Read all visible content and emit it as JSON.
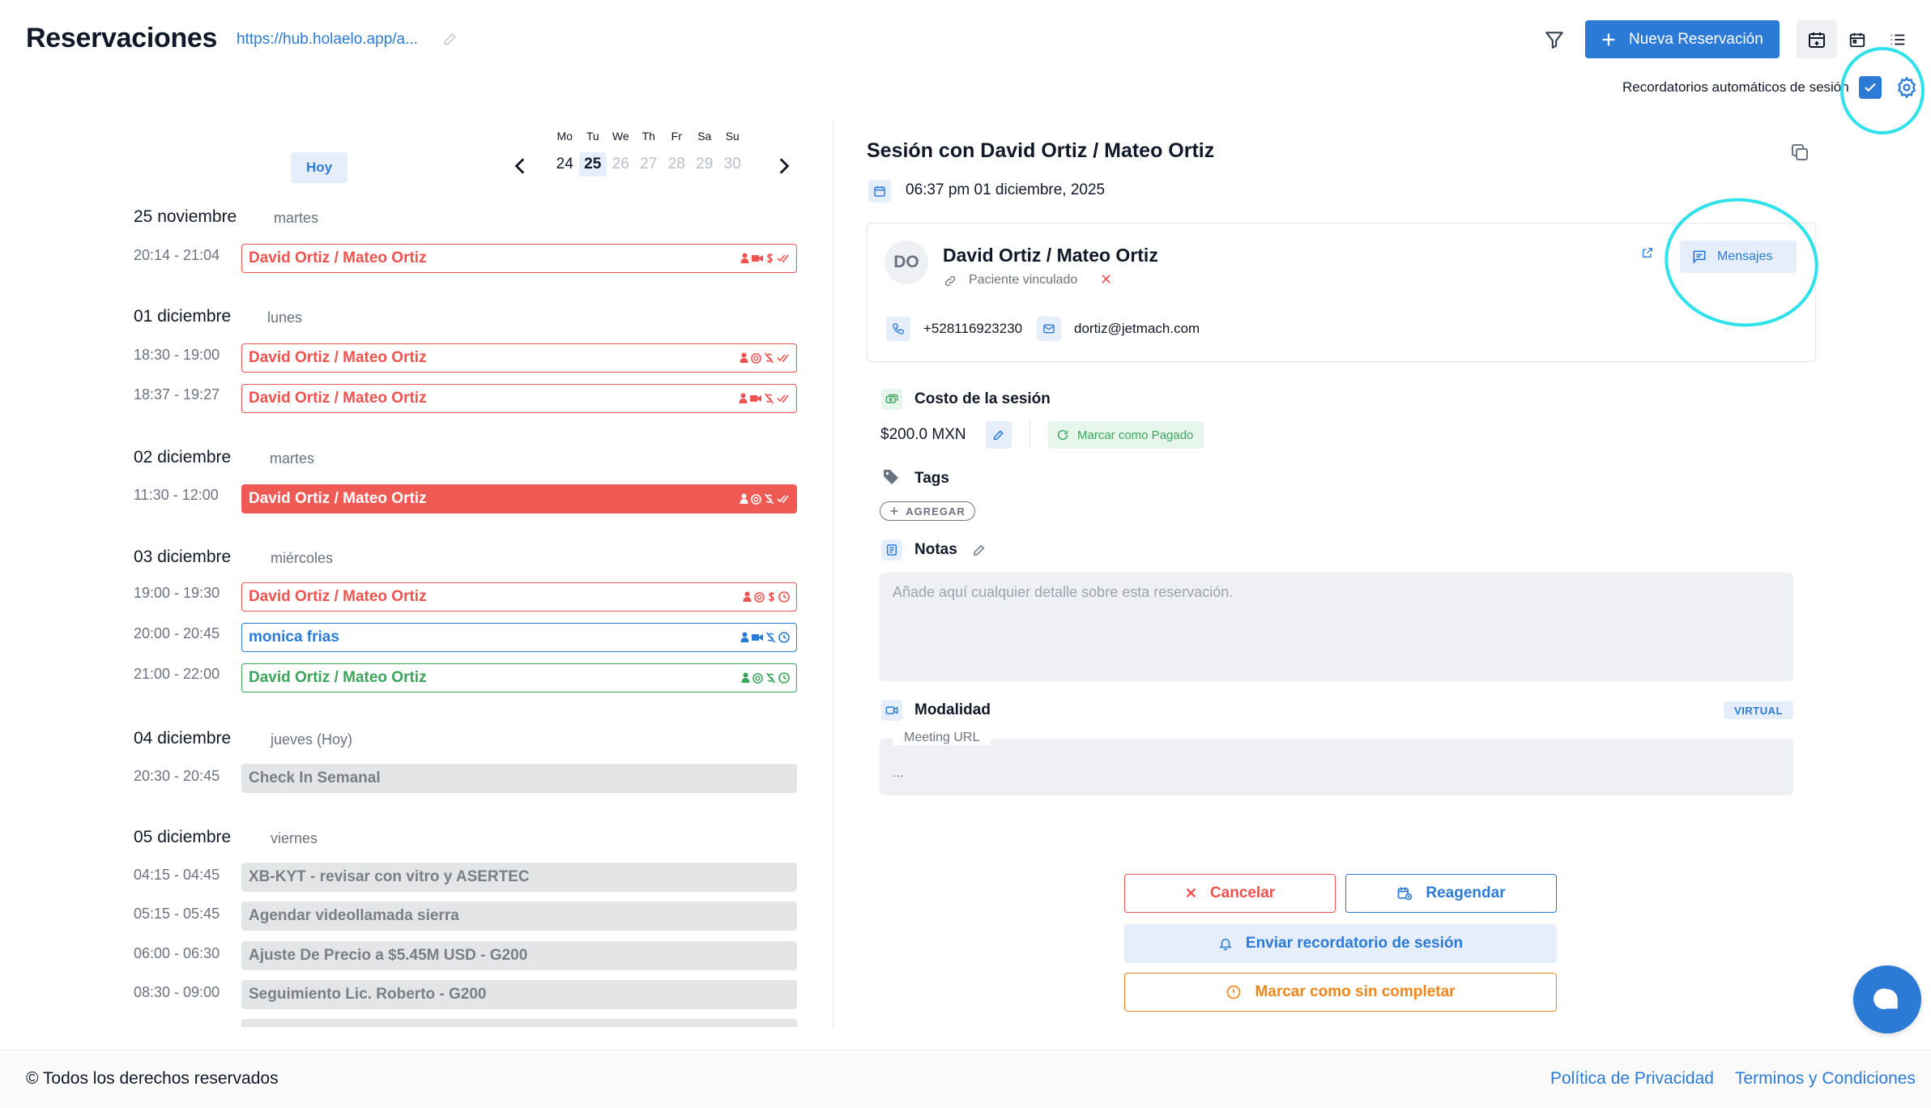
{
  "header": {
    "title": "Reservaciones",
    "url": "https://hub.holaelo.app/a...",
    "new_button": "Nueva Reservación",
    "reminders_label": "Recordatorios automáticos de sesión"
  },
  "calendar": {
    "today_button": "Hoy",
    "week": [
      {
        "name": "Mo",
        "num": "24"
      },
      {
        "name": "Tu",
        "num": "25"
      },
      {
        "name": "We",
        "num": "26"
      },
      {
        "name": "Th",
        "num": "27"
      },
      {
        "name": "Fr",
        "num": "28"
      },
      {
        "name": "Sa",
        "num": "29"
      },
      {
        "name": "Su",
        "num": "30"
      }
    ],
    "selected_day": "25"
  },
  "groups": [
    {
      "date": "25 noviembre",
      "day": "martes"
    },
    {
      "date": "01 diciembre",
      "day": "lunes"
    },
    {
      "date": "02 diciembre",
      "day": "martes"
    },
    {
      "date": "03 diciembre",
      "day": "miércoles"
    },
    {
      "date": "04 diciembre",
      "day": "jueves (Hoy)"
    },
    {
      "date": "05 diciembre",
      "day": "viernes"
    }
  ],
  "events": [
    {
      "time": "20:14 - 21:04",
      "name": "David Ortiz / Mateo Ortiz",
      "style": "red"
    },
    {
      "time": "18:30 - 19:00",
      "name": "David Ortiz / Mateo Ortiz",
      "style": "red"
    },
    {
      "time": "18:37 - 19:27",
      "name": "David Ortiz / Mateo Ortiz",
      "style": "red"
    },
    {
      "time": "11:30 - 12:00",
      "name": "David Ortiz / Mateo Ortiz",
      "style": "redfill"
    },
    {
      "time": "19:00 - 19:30",
      "name": "David Ortiz / Mateo Ortiz",
      "style": "red"
    },
    {
      "time": "20:00 - 20:45",
      "name": "monica frias",
      "style": "blue"
    },
    {
      "time": "21:00 - 22:00",
      "name": "David Ortiz / Mateo Ortiz",
      "style": "green"
    },
    {
      "time": "20:30 - 20:45",
      "name": "Check In Semanal",
      "style": "gray"
    },
    {
      "time": "04:15 - 04:45",
      "name": "XB-KYT - revisar con vitro y ASERTEC",
      "style": "gray"
    },
    {
      "time": "05:15 - 05:45",
      "name": "Agendar videollamada sierra",
      "style": "gray"
    },
    {
      "time": "06:00 - 06:30",
      "name": "Ajuste De Precio a $5.45M USD - G200",
      "style": "gray"
    },
    {
      "time": "08:30 - 09:00",
      "name": "Seguimiento Lic. Roberto - G200",
      "style": "gray"
    }
  ],
  "session": {
    "title": "Sesión con David Ortiz / Mateo Ortiz",
    "datetime": "06:37 pm 01 diciembre, 2025",
    "patient": {
      "initials": "DO",
      "name": "David Ortiz / Mateo Ortiz",
      "linked_label": "Paciente vinculado",
      "phone": "+528116923230",
      "email": "dortiz@jetmach.com"
    },
    "messages_button": "Mensajes",
    "cost_label": "Costo de la sesión",
    "cost_value": "$200.0 MXN",
    "mark_paid": "Marcar como Pagado",
    "tags_label": "Tags",
    "add_tag": "AGREGAR",
    "notes_label": "Notas",
    "notes_placeholder": "Añade aquí cualquier detalle sobre esta reservación.",
    "modality_label": "Modalidad",
    "modality_value": "VIRTUAL",
    "meeting_url_label": "Meeting URL",
    "meeting_url_value": "..."
  },
  "actions": {
    "cancel": "Cancelar",
    "reschedule": "Reagendar",
    "send_reminder": "Enviar recordatorio de sesión",
    "mark_incomplete": "Marcar como sin completar"
  },
  "footer": {
    "copyright": "© Todos los derechos reservados",
    "privacy": "Política de Privacidad",
    "terms": "Terminos y Condiciones"
  },
  "colors": {
    "accent": "#2b7bd6",
    "danger": "#ef5350",
    "success": "#3aa55a",
    "warning": "#f0861a",
    "annotation": "#2fe1ea"
  }
}
